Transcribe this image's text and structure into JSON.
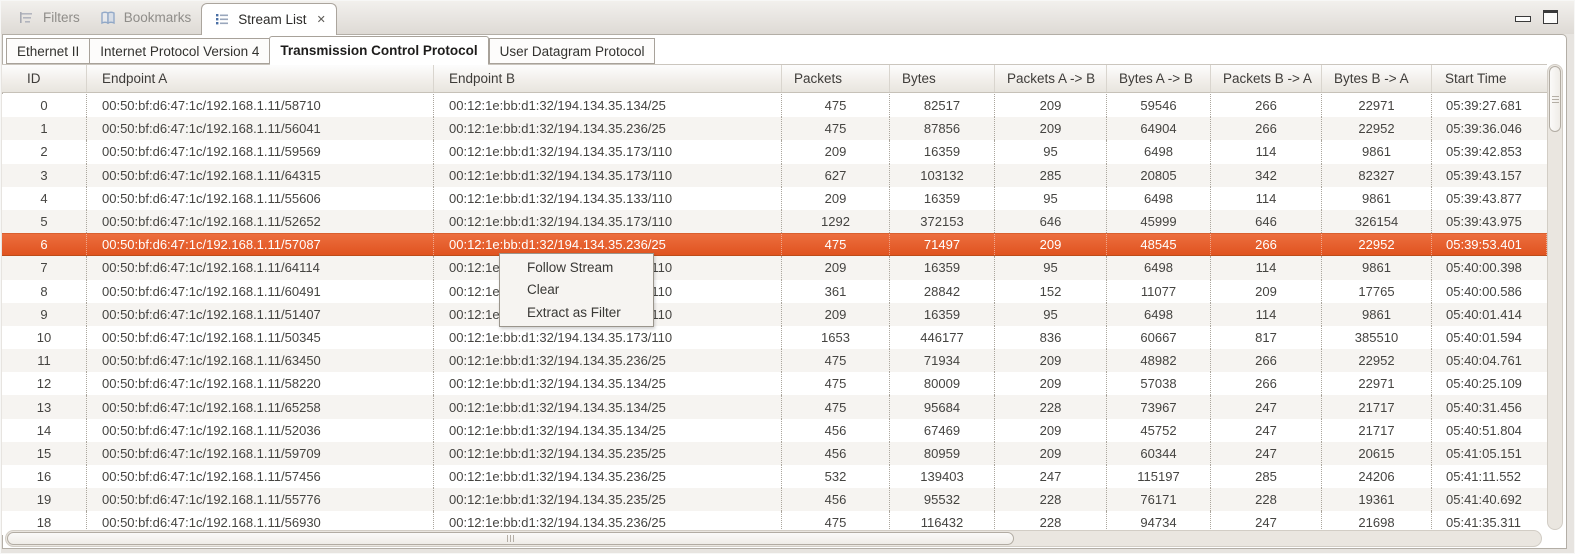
{
  "view_tabs": {
    "tabs": [
      {
        "label": "Filters",
        "icon": "filter-icon",
        "active": false
      },
      {
        "label": "Bookmarks",
        "icon": "bookmarks-icon",
        "active": false
      },
      {
        "label": "Stream List",
        "icon": "stream-list-icon",
        "active": true,
        "close_glyph": "✕"
      }
    ]
  },
  "window_controls": {
    "minimize": "minimize-icon",
    "maximize": "maximize-icon"
  },
  "protocol_tabs": [
    {
      "label": "Ethernet II",
      "active": false
    },
    {
      "label": "Internet Protocol Version 4",
      "active": false
    },
    {
      "label": "Transmission Control Protocol",
      "active": true
    },
    {
      "label": "User Datagram Protocol",
      "active": false
    }
  ],
  "table": {
    "columns": [
      "ID",
      "Endpoint A",
      "Endpoint B",
      "Packets",
      "Bytes",
      "Packets A -> B",
      "Bytes A -> B",
      "Packets B -> A",
      "Bytes B -> A",
      "Start Time"
    ],
    "selected_index": 6,
    "rows": [
      [
        "0",
        "00:50:bf:d6:47:1c/192.168.1.11/58710",
        "00:12:1e:bb:d1:32/194.134.35.134/25",
        "475",
        "82517",
        "209",
        "59546",
        "266",
        "22971",
        "05:39:27.681"
      ],
      [
        "1",
        "00:50:bf:d6:47:1c/192.168.1.11/56041",
        "00:12:1e:bb:d1:32/194.134.35.236/25",
        "475",
        "87856",
        "209",
        "64904",
        "266",
        "22952",
        "05:39:36.046"
      ],
      [
        "2",
        "00:50:bf:d6:47:1c/192.168.1.11/59569",
        "00:12:1e:bb:d1:32/194.134.35.173/110",
        "209",
        "16359",
        "95",
        "6498",
        "114",
        "9861",
        "05:39:42.853"
      ],
      [
        "3",
        "00:50:bf:d6:47:1c/192.168.1.11/64315",
        "00:12:1e:bb:d1:32/194.134.35.173/110",
        "627",
        "103132",
        "285",
        "20805",
        "342",
        "82327",
        "05:39:43.157"
      ],
      [
        "4",
        "00:50:bf:d6:47:1c/192.168.1.11/55606",
        "00:12:1e:bb:d1:32/194.134.35.133/110",
        "209",
        "16359",
        "95",
        "6498",
        "114",
        "9861",
        "05:39:43.877"
      ],
      [
        "5",
        "00:50:bf:d6:47:1c/192.168.1.11/52652",
        "00:12:1e:bb:d1:32/194.134.35.173/110",
        "1292",
        "372153",
        "646",
        "45999",
        "646",
        "326154",
        "05:39:43.975"
      ],
      [
        "6",
        "00:50:bf:d6:47:1c/192.168.1.11/57087",
        "00:12:1e:bb:d1:32/194.134.35.236/25",
        "475",
        "71497",
        "209",
        "48545",
        "266",
        "22952",
        "05:39:53.401"
      ],
      [
        "7",
        "00:50:bf:d6:47:1c/192.168.1.11/64114",
        "00:12:1e:bb:d1:32/194.134.35.173/110",
        "209",
        "16359",
        "95",
        "6498",
        "114",
        "9861",
        "05:40:00.398"
      ],
      [
        "8",
        "00:50:bf:d6:47:1c/192.168.1.11/60491",
        "00:12:1e:bb:d1:32/194.134.35.173/110",
        "361",
        "28842",
        "152",
        "11077",
        "209",
        "17765",
        "05:40:00.586"
      ],
      [
        "9",
        "00:50:bf:d6:47:1c/192.168.1.11/51407",
        "00:12:1e:bb:d1:32/194.134.35.141/110",
        "209",
        "16359",
        "95",
        "6498",
        "114",
        "9861",
        "05:40:01.414"
      ],
      [
        "10",
        "00:50:bf:d6:47:1c/192.168.1.11/50345",
        "00:12:1e:bb:d1:32/194.134.35.173/110",
        "1653",
        "446177",
        "836",
        "60667",
        "817",
        "385510",
        "05:40:01.594"
      ],
      [
        "11",
        "00:50:bf:d6:47:1c/192.168.1.11/63450",
        "00:12:1e:bb:d1:32/194.134.35.236/25",
        "475",
        "71934",
        "209",
        "48982",
        "266",
        "22952",
        "05:40:04.761"
      ],
      [
        "12",
        "00:50:bf:d6:47:1c/192.168.1.11/58220",
        "00:12:1e:bb:d1:32/194.134.35.134/25",
        "475",
        "80009",
        "209",
        "57038",
        "266",
        "22971",
        "05:40:25.109"
      ],
      [
        "13",
        "00:50:bf:d6:47:1c/192.168.1.11/65258",
        "00:12:1e:bb:d1:32/194.134.35.134/25",
        "475",
        "95684",
        "228",
        "73967",
        "247",
        "21717",
        "05:40:31.456"
      ],
      [
        "14",
        "00:50:bf:d6:47:1c/192.168.1.11/52036",
        "00:12:1e:bb:d1:32/194.134.35.134/25",
        "456",
        "67469",
        "209",
        "45752",
        "247",
        "21717",
        "05:40:51.804"
      ],
      [
        "15",
        "00:50:bf:d6:47:1c/192.168.1.11/59709",
        "00:12:1e:bb:d1:32/194.134.35.235/25",
        "456",
        "80959",
        "209",
        "60344",
        "247",
        "20615",
        "05:41:05.151"
      ],
      [
        "16",
        "00:50:bf:d6:47:1c/192.168.1.11/57456",
        "00:12:1e:bb:d1:32/194.134.35.236/25",
        "532",
        "139403",
        "247",
        "115197",
        "285",
        "24206",
        "05:41:11.552"
      ],
      [
        "19",
        "00:50:bf:d6:47:1c/192.168.1.11/55776",
        "00:12:1e:bb:d1:32/194.134.35.235/25",
        "456",
        "95532",
        "228",
        "76171",
        "228",
        "19361",
        "05:41:40.692"
      ],
      [
        "18",
        "00:50:bf:d6:47:1c/192.168.1.11/56930",
        "00:12:1e:bb:d1:32/194.134.35.236/25",
        "475",
        "116432",
        "228",
        "94734",
        "247",
        "21698",
        "05:41:35.311"
      ]
    ]
  },
  "context_menu": {
    "items": [
      {
        "label": "Follow Stream"
      },
      {
        "label": "Clear"
      },
      {
        "label": "Extract as Filter"
      }
    ]
  },
  "colors": {
    "selection_orange": "#E05320",
    "selection_orange_light": "#EC6E3E",
    "accent_blue": "#5B82B8",
    "panel_border": "#B3AEA6"
  }
}
